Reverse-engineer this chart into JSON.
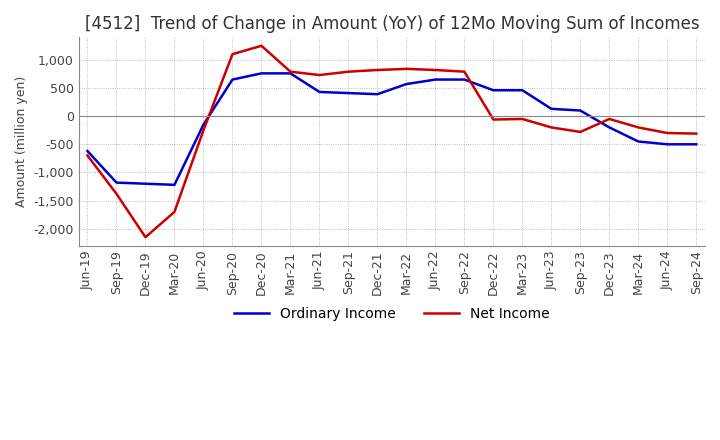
{
  "title": "[4512]  Trend of Change in Amount (YoY) of 12Mo Moving Sum of Incomes",
  "ylabel": "Amount (million yen)",
  "background_color": "#ffffff",
  "grid_color": "#aaaaaa",
  "x_labels": [
    "Jun-19",
    "Sep-19",
    "Dec-19",
    "Mar-20",
    "Jun-20",
    "Sep-20",
    "Dec-20",
    "Mar-21",
    "Jun-21",
    "Sep-21",
    "Dec-21",
    "Mar-22",
    "Jun-22",
    "Sep-22",
    "Dec-22",
    "Mar-23",
    "Jun-23",
    "Sep-23",
    "Dec-23",
    "Mar-24",
    "Jun-24",
    "Sep-24"
  ],
  "ordinary_income": [
    -620,
    -1180,
    -1200,
    -1220,
    -150,
    650,
    760,
    760,
    430,
    410,
    390,
    570,
    650,
    650,
    460,
    460,
    130,
    100,
    -200,
    -450,
    -500,
    -500
  ],
  "net_income": [
    -700,
    -1380,
    -2150,
    -1700,
    -250,
    1100,
    1250,
    790,
    730,
    790,
    820,
    840,
    820,
    790,
    -60,
    -50,
    -200,
    -280,
    -50,
    -200,
    -300,
    -310
  ],
  "ordinary_color": "#0000cc",
  "net_color": "#cc0000",
  "ylim": [
    -2300,
    1400
  ],
  "yticks": [
    -2000,
    -1500,
    -1000,
    -500,
    0,
    500,
    1000
  ],
  "title_fontsize": 12,
  "legend_fontsize": 10,
  "axis_fontsize": 9
}
